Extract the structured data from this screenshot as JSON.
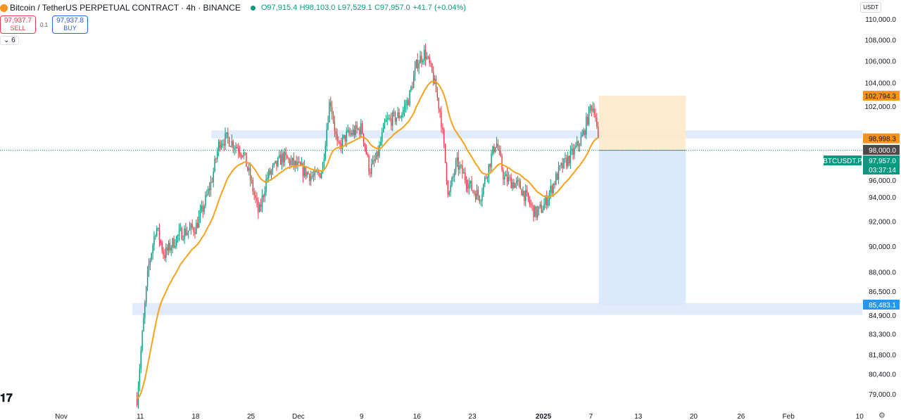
{
  "header": {
    "symbol_title": "Bitcoin / TetherUS PERPETUAL CONTRACT · 4h · BINANCE",
    "ohlc": {
      "open": "O97,915.4",
      "high": "H98,103.0",
      "low": "L97,529.1",
      "close": "C97,957.0",
      "change": "+41.7 (+0.04%)"
    },
    "sell_price": "97,937.7",
    "sell_label": "SELL",
    "spread": "0.1",
    "buy_price": "97,937.8",
    "buy_label": "BUY",
    "indicators_toggle": "6",
    "currency": "USDT"
  },
  "footer": {
    "logo": "17",
    "settings_icon": "gear-icon"
  },
  "colors": {
    "up": "#089981",
    "down": "#f23645",
    "ema": "#f7a21b",
    "zone": "#dbe6fb",
    "target": "#ffe8c7",
    "stop": "#d3e6fb"
  },
  "chart_data": {
    "type": "candlestick",
    "timeframe": "4h",
    "y_scale": "log",
    "ylim": [
      78000,
      111000
    ],
    "y_ticks": [
      "110,000.0",
      "108,000.0",
      "106,000.0",
      "104,000.0",
      "102,000.0",
      "98,000.0",
      "96,000.0",
      "94,000.0",
      "92,000.0",
      "90,000.0",
      "88,000.0",
      "86,500.0",
      "84,900.0",
      "83,300.0",
      "81,800.0",
      "80,400.0",
      "79,000.0"
    ],
    "y_tick_values": [
      110000,
      108000,
      106000,
      104000,
      102000,
      98000,
      96000,
      94000,
      92000,
      90000,
      88000,
      86500,
      84900,
      83300,
      81800,
      80400,
      79000
    ],
    "x_ticks": [
      {
        "label": "Nov",
        "date": "2024-11-01"
      },
      {
        "label": "11",
        "date": "2024-11-11"
      },
      {
        "label": "18",
        "date": "2024-11-18"
      },
      {
        "label": "25",
        "date": "2024-11-25"
      },
      {
        "label": "Dec",
        "date": "2024-12-01"
      },
      {
        "label": "9",
        "date": "2024-12-09"
      },
      {
        "label": "16",
        "date": "2024-12-16"
      },
      {
        "label": "23",
        "date": "2024-12-23"
      },
      {
        "label": "2025",
        "date": "2025-01-01"
      },
      {
        "label": "7",
        "date": "2025-01-07"
      },
      {
        "label": "13",
        "date": "2025-01-13"
      },
      {
        "label": "20",
        "date": "2025-01-20"
      },
      {
        "label": "26",
        "date": "2025-01-26"
      },
      {
        "label": "Feb",
        "date": "2025-02-01"
      },
      {
        "label": "10",
        "date": "2025-02-10"
      }
    ],
    "approx_price_path": [
      [
        "2024-11-10 14:00",
        78700
      ],
      [
        "2024-11-12",
        88200
      ],
      [
        "2024-11-13",
        91600
      ],
      [
        "2024-11-14",
        89300
      ],
      [
        "2024-11-16",
        91000
      ],
      [
        "2024-11-18",
        91500
      ],
      [
        "2024-11-19",
        93200
      ],
      [
        "2024-11-20",
        95300
      ],
      [
        "2024-11-21",
        98700
      ],
      [
        "2024-11-22",
        99000
      ],
      [
        "2024-11-24",
        97800
      ],
      [
        "2024-11-25",
        95300
      ],
      [
        "2024-11-26",
        92600
      ],
      [
        "2024-11-27",
        95600
      ],
      [
        "2024-11-29",
        97400
      ],
      [
        "2024-12-01",
        96500
      ],
      [
        "2024-12-03",
        95600
      ],
      [
        "2024-12-04",
        96200
      ],
      [
        "2024-12-05",
        102600
      ],
      [
        "2024-12-06",
        98000
      ],
      [
        "2024-12-07",
        99200
      ],
      [
        "2024-12-09",
        99900
      ],
      [
        "2024-12-10",
        96200
      ],
      [
        "2024-12-11",
        97400
      ],
      [
        "2024-12-12",
        100400
      ],
      [
        "2024-12-14",
        101100
      ],
      [
        "2024-12-15",
        102600
      ],
      [
        "2024-12-16",
        105800
      ],
      [
        "2024-12-17",
        106800
      ],
      [
        "2024-12-18",
        104600
      ],
      [
        "2024-12-19",
        101100
      ],
      [
        "2024-12-20",
        94000
      ],
      [
        "2024-12-21",
        96900
      ],
      [
        "2024-12-23",
        94600
      ],
      [
        "2024-12-24",
        94000
      ],
      [
        "2024-12-26",
        98800
      ],
      [
        "2024-12-27",
        95600
      ],
      [
        "2024-12-29",
        94900
      ],
      [
        "2024-12-31",
        92600
      ],
      [
        "2025-01-01",
        93200
      ],
      [
        "2025-01-03",
        96200
      ],
      [
        "2025-01-05",
        98000
      ],
      [
        "2025-01-06",
        99200
      ],
      [
        "2025-01-07",
        101900
      ],
      [
        "2025-01-07 12:00",
        101600
      ],
      [
        "2025-01-08",
        97957
      ]
    ],
    "zones": [
      {
        "from": 98998.3,
        "to": 99700,
        "start": "2024-11-20"
      },
      {
        "from": 84700,
        "to": 85600,
        "start": "2024-11-10"
      }
    ],
    "position": {
      "entry": 97957.0,
      "target": 102794.3,
      "stop": 85483.1,
      "start": "2025-01-08",
      "end": "2025-01-19"
    },
    "price_labels": [
      {
        "text": "102,794.3",
        "value": 102794.3,
        "bg": "#f7931a",
        "fg": "#131722"
      },
      {
        "text": "98,998.3",
        "value": 98998.3,
        "bg": "#f7931a",
        "fg": "#131722"
      },
      {
        "text": "98,000.0",
        "value": 98000,
        "bg": "#4a4a4a",
        "fg": "#ffffff"
      },
      {
        "text": "97,957.0",
        "value": 97957,
        "bg": "#089981",
        "fg": "#ffffff",
        "sub": "03:37:14"
      },
      {
        "text": "85,483.1",
        "value": 85483.1,
        "bg": "#2196f3",
        "fg": "#ffffff"
      }
    ],
    "symbol_tag": "BTCUSDT.P"
  }
}
